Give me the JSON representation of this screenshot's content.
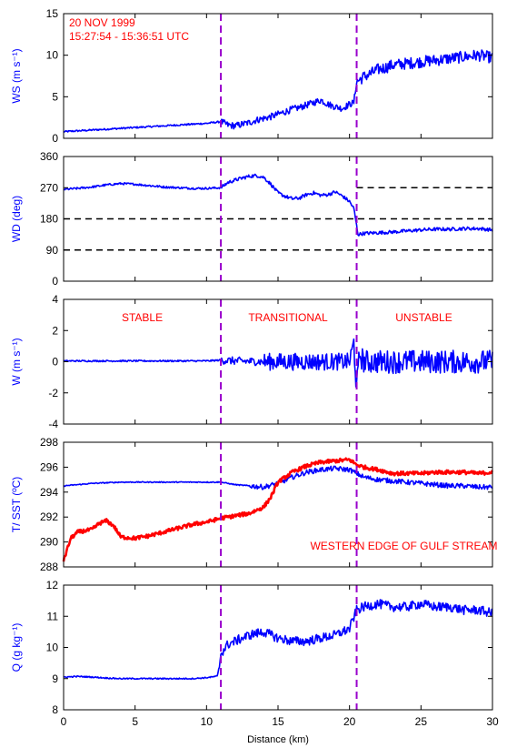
{
  "chart_data": {
    "type": "line",
    "colors": {
      "primary": "#0000ff",
      "secondary": "#ff0000",
      "reference": "#9900cc",
      "reference_line": "#000000"
    },
    "figure_annotation": [
      "20 NOV 1999",
      "15:27:54 - 15:36:51 UTC"
    ],
    "xlabel": "Distance (km)",
    "xlim": [
      0,
      30
    ],
    "xticks": [
      0,
      5,
      10,
      15,
      20,
      25,
      30
    ],
    "vertical_markers": [
      11,
      20.5
    ],
    "panels": [
      {
        "id": "ws",
        "ylabel": "WS (m s⁻¹)",
        "ylim": [
          0,
          15
        ],
        "yticks": [
          0,
          5,
          10,
          15
        ],
        "series": [
          {
            "role": "primary",
            "x": [
              0,
              1,
              2,
              3,
              4,
              5,
              6,
              7,
              8,
              9,
              10,
              10.5,
              11,
              11.5,
              12,
              12.5,
              13,
              13.5,
              14,
              14.5,
              15,
              15.5,
              16,
              16.5,
              17,
              17.5,
              18,
              18.5,
              19,
              19.5,
              20,
              20.3,
              20.5,
              21,
              21.5,
              22,
              22.5,
              23,
              24,
              25,
              26,
              27,
              28,
              29,
              30
            ],
            "values": [
              0.8,
              0.9,
              1.0,
              1.1,
              1.2,
              1.3,
              1.4,
              1.5,
              1.6,
              1.7,
              1.8,
              1.9,
              2.0,
              1.6,
              1.5,
              1.7,
              1.9,
              2.2,
              2.4,
              2.6,
              2.9,
              3.2,
              3.5,
              3.7,
              4.0,
              4.3,
              4.6,
              4.1,
              3.8,
              3.6,
              4.1,
              4.3,
              6.8,
              7.4,
              7.8,
              8.3,
              8.5,
              8.8,
              9.0,
              9.2,
              9.4,
              9.6,
              9.8,
              10.0,
              9.7
            ],
            "noise": 0.7
          }
        ]
      },
      {
        "id": "wd",
        "ylabel": "WD (deg)",
        "ylim": [
          0,
          360
        ],
        "yticks": [
          0,
          90,
          180,
          270,
          360
        ],
        "reference_lines": [
          {
            "y": 270,
            "x_range": [
              20.5,
              30
            ]
          },
          {
            "y": 180,
            "x_range": [
              0,
              30
            ]
          },
          {
            "y": 90,
            "x_range": [
              0,
              30
            ]
          }
        ],
        "series": [
          {
            "role": "primary",
            "x": [
              0,
              1,
              2,
              3,
              4,
              5,
              6,
              7,
              8,
              9,
              10,
              11,
              11.5,
              12,
              12.5,
              13,
              13.5,
              14,
              14.5,
              15,
              15.5,
              16,
              16.5,
              17,
              17.5,
              18,
              18.5,
              19,
              19.5,
              20,
              20.3,
              20.6,
              21,
              22,
              23,
              24,
              25,
              26,
              27,
              28,
              29,
              30
            ],
            "values": [
              265,
              268,
              272,
              278,
              282,
              280,
              276,
              272,
              270,
              268,
              268,
              270,
              285,
              292,
              298,
              303,
              305,
              300,
              280,
              255,
              245,
              238,
              240,
              250,
              255,
              248,
              250,
              258,
              246,
              230,
              210,
              135,
              138,
              140,
              142,
              145,
              148,
              150,
              150,
              152,
              152,
              148
            ],
            "noise": 5
          }
        ]
      },
      {
        "id": "w",
        "ylabel": "W (m s⁻¹)",
        "ylim": [
          -4,
          4
        ],
        "yticks": [
          -4,
          -2,
          0,
          2,
          4
        ],
        "region_labels": [
          {
            "text": "STABLE",
            "x": 5.5
          },
          {
            "text": "TRANSITIONAL",
            "x": 15.7
          },
          {
            "text": "UNSTABLE",
            "x": 25.2
          }
        ],
        "series": [
          {
            "role": "primary",
            "x": [
              0,
              5,
              10,
              11,
              12,
              14,
              16,
              18,
              20,
              20.3,
              20.5,
              20.7,
              21,
              23,
              25,
              27,
              30
            ],
            "values": [
              0.05,
              0.05,
              0.05,
              0.1,
              0.05,
              0,
              0,
              0,
              0,
              1.2,
              -1.8,
              0.5,
              0,
              0,
              0,
              0,
              0
            ],
            "noise": 0.05
          }
        ]
      },
      {
        "id": "t_sst",
        "ylabel": "T/ SST (ºC)",
        "ylim": [
          288,
          298
        ],
        "yticks": [
          288,
          290,
          292,
          294,
          296,
          298
        ],
        "annotation": {
          "text": "WESTERN EDGE OF GULF STREAM",
          "x": 23.8,
          "y": 289.4
        },
        "series": [
          {
            "role": "primary",
            "label": "T",
            "x": [
              0,
              2,
              4,
              6,
              8,
              10,
              11,
              12,
              13,
              14,
              15,
              16,
              17,
              18,
              19,
              20,
              20.5,
              21,
              22,
              23,
              24,
              25,
              26,
              27,
              28,
              29,
              30
            ],
            "values": [
              294.5,
              294.7,
              294.8,
              294.8,
              294.8,
              294.8,
              294.8,
              294.6,
              294.5,
              294.4,
              294.7,
              295.2,
              295.6,
              295.8,
              295.9,
              295.8,
              295.5,
              295.2,
              295.0,
              294.9,
              294.8,
              294.7,
              294.6,
              294.5,
              294.5,
              294.4,
              294.4
            ],
            "noise": 0.2
          },
          {
            "role": "secondary",
            "label": "SST",
            "x": [
              0,
              0.5,
              1,
              2,
              2.5,
              3,
              3.5,
              4,
              5,
              6,
              7,
              8,
              9,
              10,
              11,
              12,
              13,
              14,
              14.5,
              15,
              16,
              17,
              18,
              19,
              20,
              20.5,
              21,
              22,
              23,
              24,
              25,
              26,
              27,
              28,
              29,
              30
            ],
            "values": [
              288.5,
              290.3,
              290.8,
              291.0,
              291.5,
              291.7,
              291.3,
              290.4,
              290.3,
              290.5,
              290.8,
              291.1,
              291.4,
              291.6,
              291.9,
              292.1,
              292.3,
              292.8,
              293.6,
              294.8,
              295.6,
              296.1,
              296.4,
              296.5,
              296.6,
              296.2,
              296.0,
              295.8,
              295.5,
              295.5,
              295.5,
              295.6,
              295.6,
              295.6,
              295.5,
              295.6
            ],
            "noise": 0.15
          }
        ]
      },
      {
        "id": "q",
        "ylabel": "Q (g kg⁻¹)",
        "ylim": [
          8,
          12
        ],
        "yticks": [
          8,
          9,
          10,
          11,
          12
        ],
        "series": [
          {
            "role": "primary",
            "x": [
              0,
              1,
              2,
              3,
              4,
              5,
              6,
              7,
              8,
              9,
              10,
              10.8,
              11,
              11.5,
              12,
              13,
              14,
              15,
              16,
              17,
              18,
              19,
              20,
              20.5,
              21,
              22,
              23,
              24,
              25,
              26,
              27,
              28,
              29,
              30
            ],
            "values": [
              9.05,
              9.07,
              9.05,
              9.02,
              9.0,
              9.0,
              9.0,
              9.0,
              9.0,
              9.0,
              9.03,
              9.08,
              9.8,
              10.1,
              10.2,
              10.4,
              10.5,
              10.3,
              10.2,
              10.2,
              10.3,
              10.4,
              10.6,
              11.2,
              11.3,
              11.4,
              11.3,
              11.3,
              11.4,
              11.3,
              11.3,
              11.2,
              11.2,
              11.1
            ],
            "noise": 0.15
          }
        ]
      }
    ]
  }
}
